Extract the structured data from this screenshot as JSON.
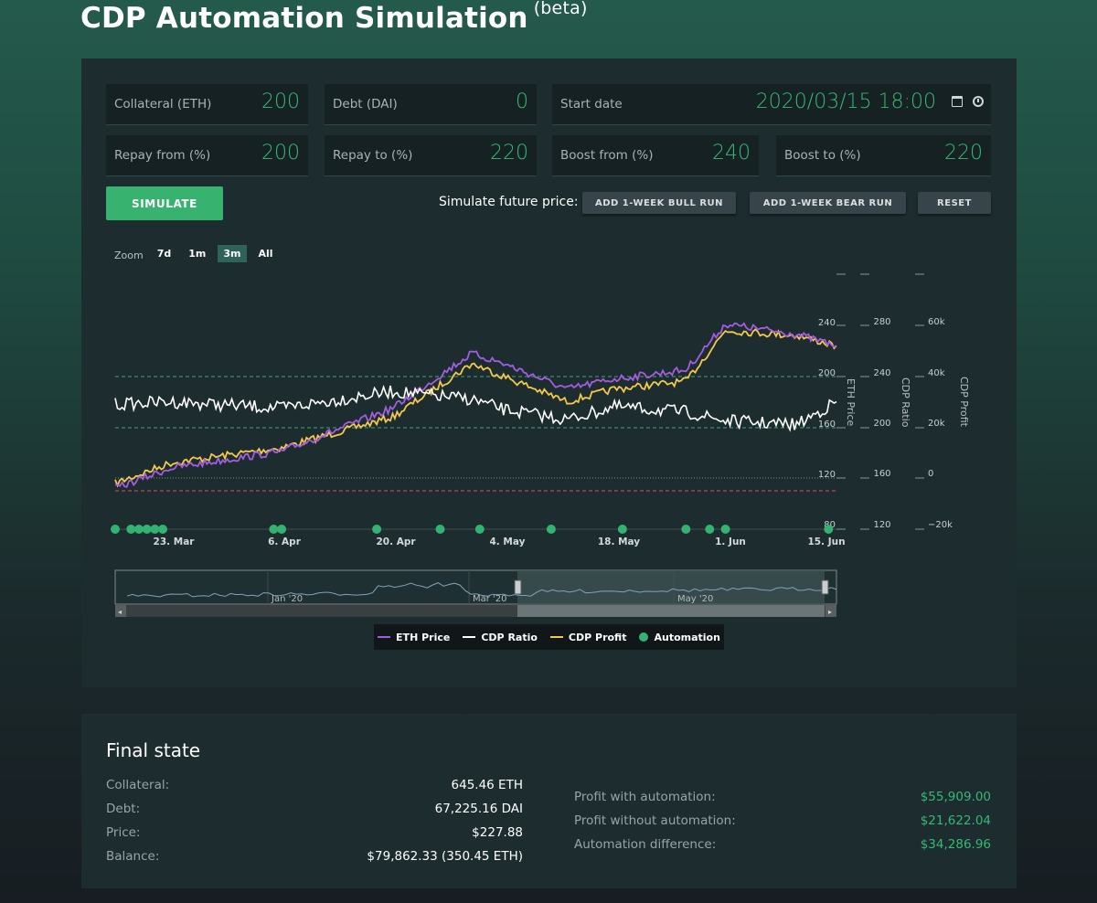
{
  "header": {
    "title": "CDP Automation Simulation",
    "beta": "(beta)"
  },
  "inputs": {
    "collateral": {
      "label": "Collateral (ETH)",
      "value": "200"
    },
    "debt": {
      "label": "Debt (DAI)",
      "value": "0"
    },
    "start_date": {
      "label": "Start date",
      "value": "2020/03/15 18:00"
    },
    "repay_from": {
      "label": "Repay from (%)",
      "value": "200"
    },
    "repay_to": {
      "label": "Repay to (%)",
      "value": "220"
    },
    "boost_from": {
      "label": "Boost from (%)",
      "value": "240"
    },
    "boost_to": {
      "label": "Boost to (%)",
      "value": "220"
    }
  },
  "icons": {
    "calendar": "calendar-icon",
    "clock": "clock-icon"
  },
  "actions": {
    "simulate": "SIMULATE",
    "future_label": "Simulate future price:",
    "bull": "ADD 1-WEEK BULL RUN",
    "bear": "ADD 1-WEEK BEAR RUN",
    "reset": "RESET"
  },
  "zoom": {
    "label": "Zoom",
    "options": [
      "7d",
      "1m",
      "3m",
      "All"
    ],
    "active": "3m"
  },
  "chart_data": {
    "type": "line",
    "x_ticks": [
      "23. Mar",
      "6. Apr",
      "20. Apr",
      "4. May",
      "18. May",
      "1. Jun",
      "15. Jun"
    ],
    "axes": {
      "eth_price": {
        "label": "ETH Price",
        "ticks": [
          "80",
          "120",
          "160",
          "200",
          "240"
        ]
      },
      "cdp_ratio": {
        "label": "CDP Ratio",
        "ticks": [
          "120",
          "160",
          "200",
          "240",
          "280"
        ]
      },
      "cdp_profit": {
        "label": "CDP Profit",
        "ticks": [
          "−20k",
          "0",
          "20k",
          "40k",
          "60k"
        ]
      }
    },
    "series": [
      {
        "name": "ETH Price",
        "color": "#a35de0",
        "x": [
          "2020-03-16",
          "2020-03-23",
          "2020-04-06",
          "2020-04-20",
          "2020-04-30",
          "2020-05-04",
          "2020-05-12",
          "2020-05-18",
          "2020-05-27",
          "2020-06-01",
          "2020-06-10",
          "2020-06-15"
        ],
        "values": [
          112,
          128,
          141,
          175,
          218,
          210,
          190,
          198,
          205,
          241,
          233,
          224
        ]
      },
      {
        "name": "CDP Ratio",
        "color": "#ffffff",
        "x": [
          "2020-03-16",
          "2020-03-23",
          "2020-04-06",
          "2020-04-20",
          "2020-04-30",
          "2020-05-04",
          "2020-05-12",
          "2020-05-18",
          "2020-05-27",
          "2020-06-01",
          "2020-06-10",
          "2020-06-15"
        ],
        "values": [
          218,
          220,
          215,
          228,
          222,
          214,
          206,
          216,
          212,
          205,
          202,
          220
        ]
      },
      {
        "name": "CDP Profit",
        "color": "#f2c94c",
        "x": [
          "2020-03-16",
          "2020-03-23",
          "2020-04-06",
          "2020-04-20",
          "2020-04-30",
          "2020-05-04",
          "2020-05-12",
          "2020-05-18",
          "2020-05-27",
          "2020-06-01",
          "2020-06-10",
          "2020-06-15"
        ],
        "values": [
          -2000,
          6000,
          12000,
          24000,
          45000,
          40000,
          30000,
          35000,
          38000,
          58000,
          56000,
          52000
        ]
      }
    ],
    "automation_points": [
      "2020-03-16",
      "2020-03-18",
      "2020-03-19",
      "2020-03-20",
      "2020-03-21",
      "2020-03-22",
      "2020-04-05",
      "2020-04-06",
      "2020-04-18",
      "2020-04-26",
      "2020-05-01",
      "2020-05-10",
      "2020-05-19",
      "2020-05-27",
      "2020-05-30",
      "2020-06-01",
      "2020-06-14"
    ],
    "reference_lines": {
      "eth_price_dashed": [
        160,
        200
      ],
      "eth_price_dotted": [
        120
      ],
      "red_dashed": 110
    },
    "navigator_labels": [
      "Jan '20",
      "Mar '20",
      "May '20"
    ]
  },
  "legend": [
    "ETH Price",
    "CDP Ratio",
    "CDP Profit",
    "Automation"
  ],
  "final_state": {
    "title": "Final state",
    "left": [
      {
        "label": "Collateral:",
        "value": "645.46 ETH"
      },
      {
        "label": "Debt:",
        "value": "67,225.16 DAI"
      },
      {
        "label": "Price:",
        "value": "$227.88"
      },
      {
        "label": "Balance:",
        "value": "$79,862.33 (350.45 ETH)"
      }
    ],
    "right": [
      {
        "label": "Profit with automation:",
        "value": "$55,909.00"
      },
      {
        "label": "Profit without automation:",
        "value": "$21,622.04"
      },
      {
        "label": "Automation difference:",
        "value": "$34,286.96"
      }
    ]
  },
  "colors": {
    "accent": "#37b875",
    "eth": "#a35de0",
    "ratio": "#ffffff",
    "profit": "#f2c94c",
    "automation": "#34b271"
  }
}
